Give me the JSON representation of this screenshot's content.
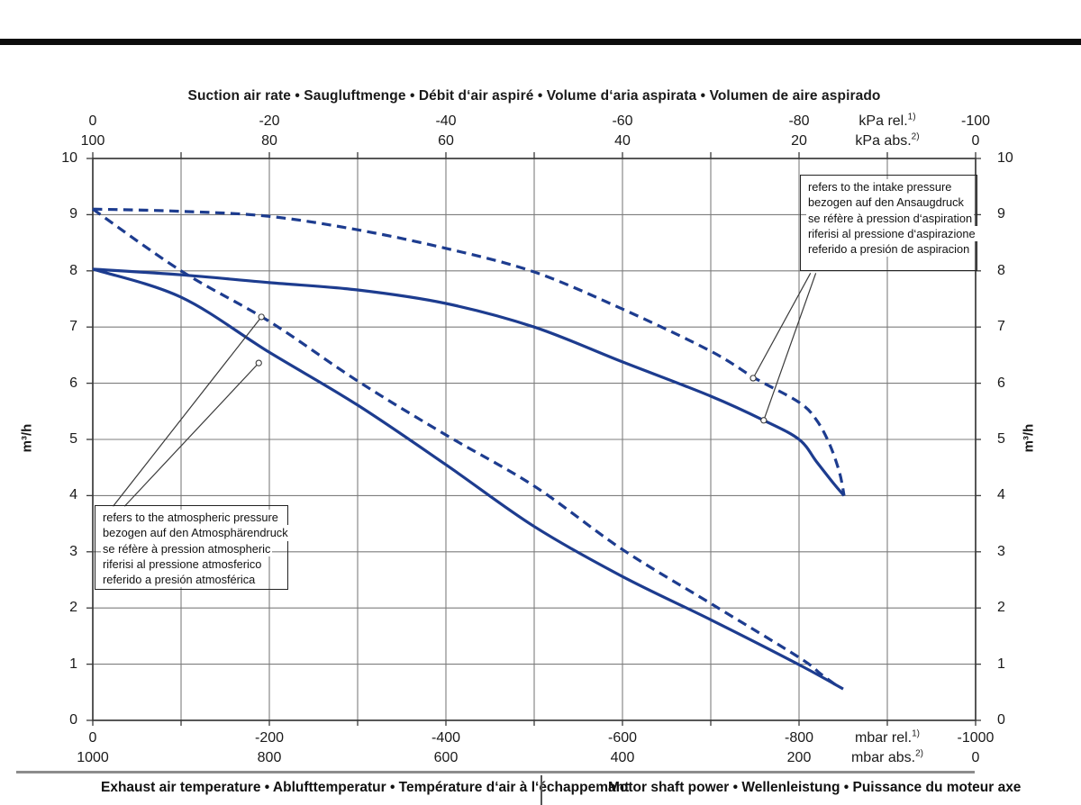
{
  "title": "Suction air rate  •  Saugluftmenge  •  Débit d‘air aspiré  •  Volume d‘aria aspirata  •  Volumen de aire aspirado",
  "footer": {
    "left": "Exhaust air temperature  •  Ablufttemperatur  •  Température d‘air à l‘échappemant",
    "right": "Motor shaft power  •  Wellenleistung  •  Puissance du moteur axe"
  },
  "axes": {
    "y_unit_left": "m³/h",
    "y_unit_right": "m³/h",
    "y_ticks": [
      "0",
      "1",
      "2",
      "3",
      "4",
      "5",
      "6",
      "7",
      "8",
      "9",
      "10"
    ],
    "top_row1": {
      "labels": [
        {
          "v": 0,
          "t": "0"
        },
        {
          "v": 20,
          "t": "-20"
        },
        {
          "v": 40,
          "t": "-40"
        },
        {
          "v": 60,
          "t": "-60"
        },
        {
          "v": 80,
          "t": "-80"
        },
        {
          "v": 100,
          "t": "-100"
        }
      ],
      "unit": {
        "v": 90,
        "t": "kPa rel.",
        "sup": "1)"
      }
    },
    "top_row2": {
      "labels": [
        {
          "v": 0,
          "t": "100"
        },
        {
          "v": 20,
          "t": "80"
        },
        {
          "v": 40,
          "t": "60"
        },
        {
          "v": 60,
          "t": "40"
        },
        {
          "v": 80,
          "t": "20"
        },
        {
          "v": 100,
          "t": "0"
        }
      ],
      "unit": {
        "v": 90,
        "t": "kPa abs.",
        "sup": "2)"
      }
    },
    "bottom_row1": {
      "labels": [
        {
          "v": 0,
          "t": "0"
        },
        {
          "v": 20,
          "t": "-200"
        },
        {
          "v": 40,
          "t": "-400"
        },
        {
          "v": 60,
          "t": "-600"
        },
        {
          "v": 80,
          "t": "-800"
        },
        {
          "v": 100,
          "t": "-1000"
        }
      ],
      "unit": {
        "v": 90,
        "t": "mbar rel.",
        "sup": "1)"
      }
    },
    "bottom_row2": {
      "labels": [
        {
          "v": 0,
          "t": "1000"
        },
        {
          "v": 20,
          "t": "800"
        },
        {
          "v": 40,
          "t": "600"
        },
        {
          "v": 60,
          "t": "400"
        },
        {
          "v": 80,
          "t": "200"
        },
        {
          "v": 100,
          "t": "0"
        }
      ],
      "unit": {
        "v": 90,
        "t": "mbar abs.",
        "sup": "2)"
      }
    }
  },
  "annotations": {
    "intake": {
      "lines": [
        "refers to the intake pressure",
        "bezogen auf den Ansaugdruck",
        "se réfère à pression d‘aspiration",
        "riferisi al pressione d‘aspirazione",
        "referido a presión de aspiracion"
      ]
    },
    "atmospheric": {
      "lines": [
        "refers to the atmospheric pressure",
        "bezogen auf den Atmosphärendruck",
        "se réfère à pression atmospheric",
        "riferisi al pressione atmosferico",
        "referido a presión atmosférica"
      ]
    }
  },
  "colors": {
    "curve": "#1d3c8f",
    "grid": "#7d7d7d",
    "axis": "#3a3a3a",
    "leader": "#3a3a3a",
    "topbar": "#0d0d0d"
  },
  "chart_data": {
    "type": "line",
    "title": "Suction air rate • Saugluftmenge • Débit d‘air aspiré • Volume d‘aria aspirata • Volumen de aire aspirado",
    "x_axis_top": {
      "label_rel": "kPa rel.1)",
      "range_rel": [
        0,
        -100
      ],
      "label_abs": "kPa abs.2)",
      "range_abs": [
        100,
        0
      ]
    },
    "x_axis_bottom": {
      "label_rel": "mbar rel.1)",
      "range_rel": [
        0,
        -1000
      ],
      "label_abs": "mbar abs.2)",
      "range_abs": [
        1000,
        0
      ]
    },
    "ylabel": "m³/h",
    "ylim": [
      0,
      10
    ],
    "grid": true,
    "series": [
      {
        "name": "suction air rate, intake pressure reference (dashed)",
        "style": "dashed",
        "points": [
          [
            0,
            9.1
          ],
          [
            -10,
            9.06
          ],
          [
            -20,
            8.97
          ],
          [
            -30,
            8.73
          ],
          [
            -40,
            8.4
          ],
          [
            -50,
            7.98
          ],
          [
            -60,
            7.32
          ],
          [
            -70,
            6.57
          ],
          [
            -75,
            6.09
          ],
          [
            -80,
            5.66
          ],
          [
            -82,
            5.34
          ],
          [
            -83.5,
            4.9
          ],
          [
            -84.6,
            4.4
          ],
          [
            -85.1,
            4.0
          ]
        ]
      },
      {
        "name": "suction air rate, intake pressure reference (solid)",
        "style": "solid",
        "points": [
          [
            0,
            8.03
          ],
          [
            -10,
            7.93
          ],
          [
            -20,
            7.79
          ],
          [
            -30,
            7.66
          ],
          [
            -40,
            7.42
          ],
          [
            -50,
            7.0
          ],
          [
            -60,
            6.38
          ],
          [
            -70,
            5.77
          ],
          [
            -76,
            5.34
          ],
          [
            -80,
            5.0
          ],
          [
            -82,
            4.6
          ],
          [
            -84,
            4.2
          ],
          [
            -85.1,
            4.0
          ]
        ]
      },
      {
        "name": "suction air rate, atmospheric pressure reference (dashed)",
        "style": "dashed",
        "points": [
          [
            0,
            9.1
          ],
          [
            -10,
            8.0
          ],
          [
            -20,
            7.1
          ],
          [
            -30,
            6.04
          ],
          [
            -40,
            5.08
          ],
          [
            -50,
            4.17
          ],
          [
            -60,
            3.04
          ],
          [
            -70,
            2.08
          ],
          [
            -80,
            1.12
          ],
          [
            -82.5,
            0.82
          ],
          [
            -84.6,
            0.58
          ]
        ]
      },
      {
        "name": "suction air rate, atmospheric pressure reference (solid)",
        "style": "solid",
        "points": [
          [
            0,
            8.03
          ],
          [
            -10,
            7.53
          ],
          [
            -20,
            6.55
          ],
          [
            -30,
            5.61
          ],
          [
            -40,
            4.55
          ],
          [
            -50,
            3.45
          ],
          [
            -60,
            2.56
          ],
          [
            -70,
            1.79
          ],
          [
            -80,
            0.99
          ],
          [
            -85,
            0.56
          ]
        ]
      }
    ],
    "leaders": [
      {
        "from": [
          -81.3,
          7.96
        ],
        "to": [
          -74.8,
          6.09
        ],
        "target": "intake dashed curve"
      },
      {
        "from": [
          -81.9,
          7.96
        ],
        "to": [
          -76.0,
          5.34
        ],
        "target": "intake solid curve"
      },
      {
        "from": [
          -2.3,
          3.81
        ],
        "to": [
          -19.1,
          7.18
        ],
        "target": "atmospheric dashed curve"
      },
      {
        "from": [
          -3.6,
          3.81
        ],
        "to": [
          -18.8,
          6.36
        ],
        "target": "atmospheric solid curve"
      }
    ]
  }
}
